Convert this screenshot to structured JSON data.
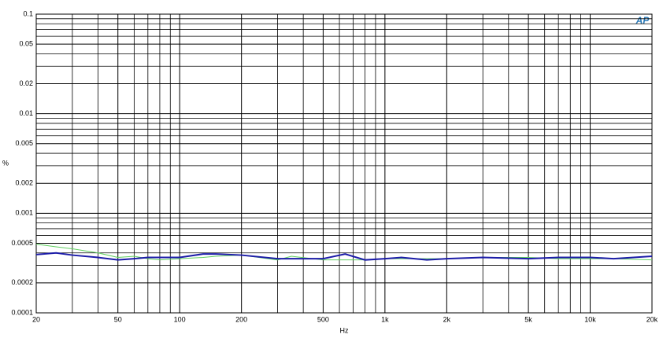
{
  "chart_data": {
    "type": "line",
    "xlabel": "Hz",
    "ylabel": "%",
    "logo": "AP",
    "xscale": "log",
    "yscale": "log",
    "xlim": [
      20,
      20000
    ],
    "ylim": [
      0.0001,
      0.1
    ],
    "xticks": [
      20,
      50,
      100,
      200,
      500,
      {
        "value": 1000,
        "label": "1k"
      },
      {
        "value": 2000,
        "label": "2k"
      },
      {
        "value": 5000,
        "label": "5k"
      },
      {
        "value": 10000,
        "label": "10k"
      },
      {
        "value": 20000,
        "label": "20k"
      }
    ],
    "yticks": [
      0.0001,
      0.0002,
      0.0005,
      0.001,
      0.002,
      0.005,
      0.01,
      0.02,
      0.05,
      0.1
    ],
    "xminor": [
      30,
      40,
      60,
      70,
      80,
      90,
      300,
      400,
      600,
      700,
      800,
      900,
      3000,
      4000,
      6000,
      7000,
      8000,
      9000
    ],
    "yminor": [
      0.0003,
      0.0004,
      0.0006,
      0.0007,
      0.0008,
      0.0009,
      0.003,
      0.004,
      0.006,
      0.007,
      0.008,
      0.009,
      0.03,
      0.04,
      0.06,
      0.07,
      0.08,
      0.09
    ],
    "grid": true,
    "x": [
      20,
      25,
      30,
      40,
      50,
      60,
      70,
      80,
      100,
      130,
      150,
      200,
      300,
      350,
      500,
      640,
      800,
      1000,
      1200,
      1600,
      2000,
      3000,
      5000,
      7000,
      10000,
      13000,
      20000
    ],
    "series": [
      {
        "color": "#5fcf5f",
        "width": 1,
        "values": [
          0.00049,
          0.00046,
          0.00044,
          0.0004,
          0.00036,
          0.00037,
          0.00035,
          0.00034,
          0.00035,
          0.00036,
          0.00037,
          0.00038,
          0.00034,
          0.00037,
          0.00034,
          0.00034,
          0.00034,
          0.00035,
          0.00035,
          0.00035,
          0.00035,
          0.00036,
          0.00036,
          0.00035,
          0.00035,
          0.00035,
          0.00034
        ]
      },
      {
        "color": "#1c1ca8",
        "width": 2,
        "values": [
          0.000385,
          0.0004,
          0.00038,
          0.00036,
          0.00034,
          0.00035,
          0.00036,
          0.00036,
          0.00036,
          0.00039,
          0.00039,
          0.00038,
          0.00035,
          0.00035,
          0.00035,
          0.00039,
          0.00034,
          0.00035,
          0.00036,
          0.00034,
          0.00035,
          0.00036,
          0.00035,
          0.00036,
          0.00036,
          0.00035,
          0.00037
        ]
      }
    ]
  }
}
